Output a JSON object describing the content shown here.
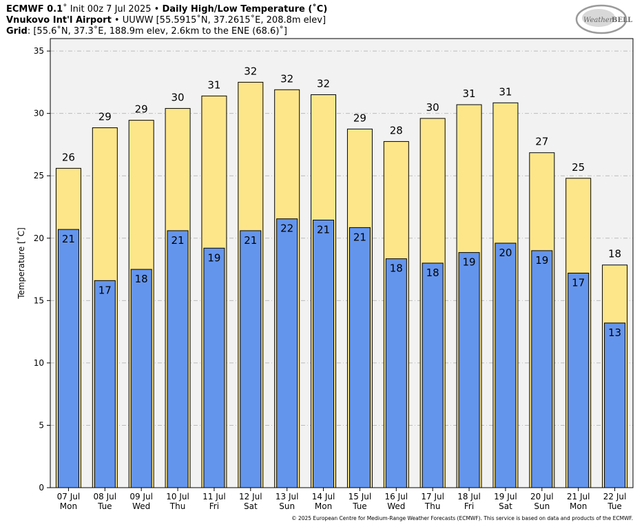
{
  "header": {
    "line1_model": "ECMWF 0.1",
    "line1_init": "˚ Init 00z 7 Jul 2025 • ",
    "line1_title": "Daily High/Low Temperature (˚C)",
    "line2_station": "Vnukovo Int'l Airport",
    "line2_info": " • UUWW [55.5915˚N, 37.2615˚E, 208.8m elev]",
    "line3_label": "Grid",
    "line3_info": ": [55.6˚N, 37.3˚E, 188.9m elev, 2.6km to the ENE (68.6)˚]"
  },
  "logo": {
    "text_a": "Weather",
    "text_b": "BELL"
  },
  "copyright": "© 2025 European Centre for Medium-Range Weather Forecasts (ECMWF). This service is based on data and products of the ECMWF.",
  "colors": {
    "high_bar": "#fde68a",
    "low_bar": "#6495ed",
    "plot_bg": "#f2f2f2",
    "grid": "#bbbbbb"
  },
  "chart_data": {
    "type": "bar",
    "ylabel": "Temperature [˚C]",
    "ylim": [
      0,
      36
    ],
    "yticks": [
      0,
      5,
      10,
      15,
      20,
      25,
      30,
      35
    ],
    "grid": true,
    "categories": [
      {
        "date": "07 Jul",
        "day": "Mon"
      },
      {
        "date": "08 Jul",
        "day": "Tue"
      },
      {
        "date": "09 Jul",
        "day": "Wed"
      },
      {
        "date": "10 Jul",
        "day": "Thu"
      },
      {
        "date": "11 Jul",
        "day": "Fri"
      },
      {
        "date": "12 Jul",
        "day": "Sat"
      },
      {
        "date": "13 Jul",
        "day": "Sun"
      },
      {
        "date": "14 Jul",
        "day": "Mon"
      },
      {
        "date": "15 Jul",
        "day": "Tue"
      },
      {
        "date": "16 Jul",
        "day": "Wed"
      },
      {
        "date": "17 Jul",
        "day": "Thu"
      },
      {
        "date": "18 Jul",
        "day": "Fri"
      },
      {
        "date": "19 Jul",
        "day": "Sat"
      },
      {
        "date": "20 Jul",
        "day": "Sun"
      },
      {
        "date": "21 Jul",
        "day": "Mon"
      },
      {
        "date": "22 Jul",
        "day": "Tue"
      }
    ],
    "high_values": [
      25.6,
      28.85,
      29.45,
      30.4,
      31.4,
      32.5,
      31.9,
      31.5,
      28.75,
      27.75,
      29.6,
      30.7,
      30.85,
      26.85,
      24.8,
      17.85
    ],
    "high_labels": [
      "26",
      "29",
      "29",
      "30",
      "31",
      "32",
      "32",
      "32",
      "29",
      "28",
      "30",
      "31",
      "31",
      "27",
      "25",
      "18"
    ],
    "low_values": [
      20.7,
      16.6,
      17.5,
      20.6,
      19.2,
      20.6,
      21.55,
      21.45,
      20.85,
      18.35,
      18.0,
      18.85,
      19.6,
      19.0,
      17.2,
      13.2
    ],
    "low_labels": [
      "21",
      "17",
      "18",
      "21",
      "19",
      "21",
      "22",
      "21",
      "21",
      "18",
      "18",
      "19",
      "20",
      "19",
      "17",
      "13"
    ]
  }
}
